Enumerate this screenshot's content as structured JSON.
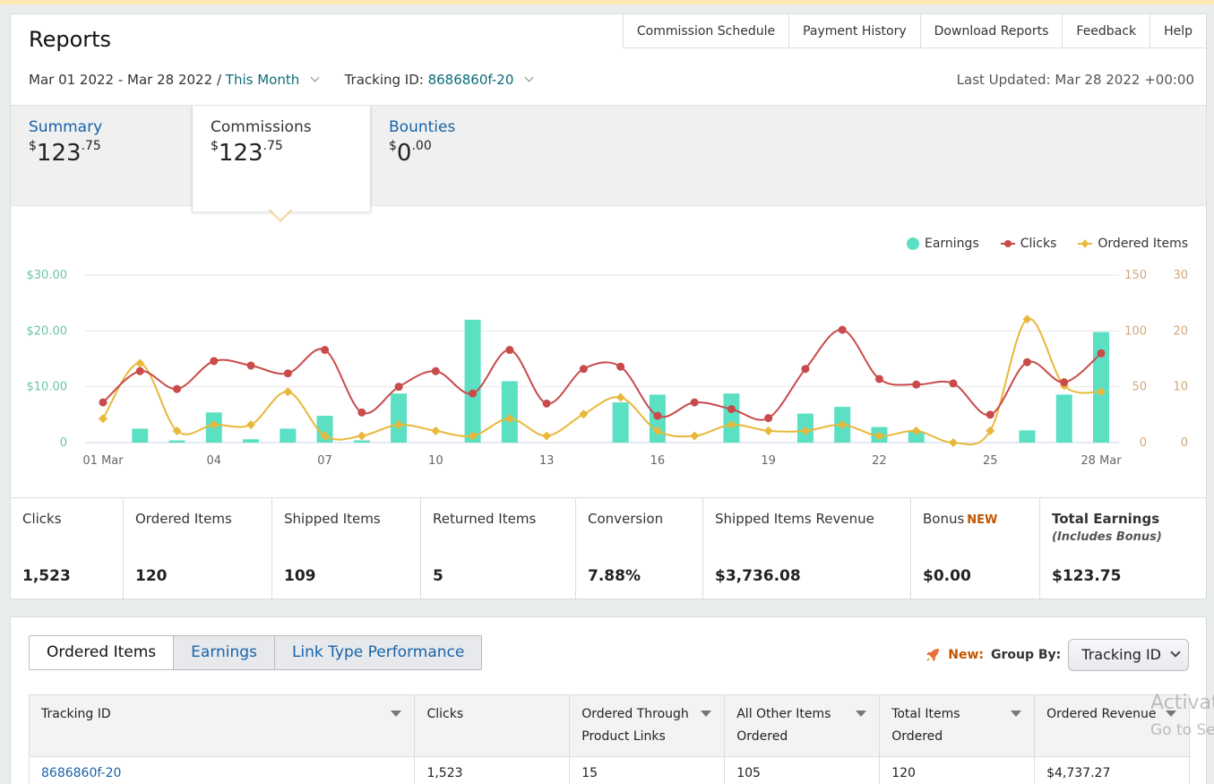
{
  "header": {
    "title": "Reports",
    "nav": [
      "Commission Schedule",
      "Payment History",
      "Download Reports",
      "Feedback",
      "Help"
    ],
    "date_range": "Mar 01 2022 - Mar 28 2022",
    "date_sep": "/",
    "date_preset": "This Month",
    "tracking_label": "Tracking ID:",
    "tracking_value": "8686860f-20",
    "last_updated": "Last Updated: Mar 28 2022 +00:00"
  },
  "summary_tabs": [
    {
      "label": "Summary",
      "currency": "$",
      "whole": "123",
      "cents": ".75"
    },
    {
      "label": "Commissions",
      "currency": "$",
      "whole": "123",
      "cents": ".75"
    },
    {
      "label": "Bounties",
      "currency": "$",
      "whole": "0",
      "cents": ".00"
    }
  ],
  "chart_data": {
    "type": "bar+line",
    "categories": [
      "01 Mar",
      "02",
      "03",
      "04",
      "05",
      "06",
      "07",
      "08",
      "09",
      "10",
      "11",
      "12",
      "13",
      "14",
      "15",
      "16",
      "17",
      "18",
      "19",
      "20",
      "21",
      "22",
      "23",
      "24",
      "25",
      "26",
      "27",
      "28 Mar"
    ],
    "x_tick_labels": [
      "01 Mar",
      "04",
      "07",
      "10",
      "13",
      "16",
      "19",
      "22",
      "25",
      "28 Mar"
    ],
    "legend": [
      "Earnings",
      "Clicks",
      "Ordered Items"
    ],
    "colors": {
      "Earnings": "#5ce0c4",
      "Clicks": "#c94a4a",
      "Ordered Items": "#e8b83a",
      "left_axis": "#6cc4a8",
      "right_axis": "#d4a77a"
    },
    "series": [
      {
        "name": "Earnings",
        "axis": "left",
        "kind": "bar",
        "values": [
          0,
          2.5,
          0.4,
          5.4,
          0.6,
          2.5,
          4.8,
          0.4,
          8.8,
          0,
          22.0,
          11.0,
          0,
          0,
          7.2,
          8.6,
          0,
          8.8,
          0,
          5.2,
          6.4,
          2.8,
          2.0,
          0,
          0,
          2.2,
          8.6,
          19.8
        ]
      },
      {
        "name": "Clicks",
        "axis": "right1",
        "kind": "line",
        "values": [
          36,
          64,
          48,
          73,
          69,
          62,
          83,
          27,
          50,
          64,
          44,
          83,
          35,
          66,
          68,
          24,
          36,
          30,
          22,
          66,
          101,
          57,
          52,
          53,
          25,
          72,
          54,
          80
        ]
      },
      {
        "name": "Ordered Items",
        "axis": "right2",
        "kind": "line",
        "values": [
          4.3,
          14.2,
          2.1,
          3.2,
          3.2,
          9.1,
          1.2,
          1.2,
          3.2,
          2.1,
          1.2,
          4.3,
          1.2,
          5.1,
          8.1,
          2.1,
          1.2,
          3.2,
          2.1,
          2.1,
          3.2,
          1.2,
          2.1,
          0,
          2.1,
          22.1,
          10.2,
          9.1
        ]
      }
    ],
    "left_axis": {
      "ticks": [
        "0",
        "$10.00",
        "$20.00",
        "$30.00"
      ],
      "min": 0,
      "max": 30
    },
    "right1_axis": {
      "ticks": [
        "0",
        "50",
        "100",
        "150"
      ],
      "min": 0,
      "max": 150
    },
    "right2_axis": {
      "ticks": [
        "0",
        "10",
        "20",
        "30"
      ],
      "min": 0,
      "max": 30
    },
    "grid": true,
    "legend_position": "top-right"
  },
  "stats": [
    {
      "label": "Clicks",
      "value": "1,523"
    },
    {
      "label": "Ordered Items",
      "value": "120"
    },
    {
      "label": "Shipped Items",
      "value": "109"
    },
    {
      "label": "Returned Items",
      "value": "5"
    },
    {
      "label": "Conversion",
      "value": "7.88%"
    },
    {
      "label": "Shipped Items Revenue",
      "value": "$3,736.08"
    },
    {
      "label": "Bonus",
      "badge": "NEW",
      "value": "$0.00"
    },
    {
      "label": "Total Earnings",
      "sub": "(Includes Bonus)",
      "value": "$123.75"
    }
  ],
  "report_tabs": [
    "Ordered Items",
    "Earnings",
    "Link Type Performance"
  ],
  "group_by": {
    "new": "New:",
    "label": "Group By:",
    "value": "Tracking ID"
  },
  "table": {
    "headers": [
      "Tracking ID",
      "Clicks",
      "Ordered Through Product Links",
      "All Other Items Ordered",
      "Total Items Ordered",
      "Ordered Revenue"
    ],
    "rows": [
      [
        "8686860f-20",
        "1,523",
        "15",
        "105",
        "120",
        "$4,737.27"
      ]
    ]
  },
  "watermark": {
    "line1": "Activate Windows",
    "line2": "Go to Settings to activate Windows."
  }
}
